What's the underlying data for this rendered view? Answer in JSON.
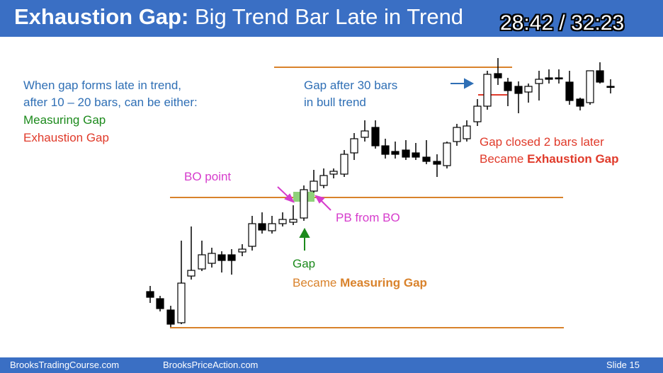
{
  "header": {
    "title_bold": "Exhaustion Gap:",
    "title_rest": "Big Trend Bar Late in Trend",
    "timer": "28:42 / 32:23"
  },
  "notes": {
    "intro_line1": "When gap forms late in trend,",
    "intro_line2": "after 10 – 20 bars, can be either:",
    "measuring_gap": "Measuring Gap",
    "exhaustion_gap": "Exhaustion Gap",
    "gap_after_line1": "Gap after 30 bars",
    "gap_after_line2": "in bull trend",
    "gap_closed_line1": "Gap closed 2 bars later",
    "became_prefix": "Became",
    "became_exhaustion": "Exhaustion Gap",
    "bo_point": "BO point",
    "pb_from_bo": "PB from BO",
    "gap": "Gap",
    "became_measuring": "Measuring Gap"
  },
  "colors": {
    "header_bg": "#3a6fc4",
    "orange_line": "#d9822b",
    "green_highlight": "#8fd17a",
    "arrow_blue": "#2f6fb5",
    "arrow_pink": "#d63ccc",
    "arrow_green": "#1c8a1c",
    "gap_red": "#e03a2a"
  },
  "footer": {
    "left": "BrooksTradingCourse.com",
    "middle": "BrooksPriceAction.com",
    "slide": "Slide  15"
  }
}
